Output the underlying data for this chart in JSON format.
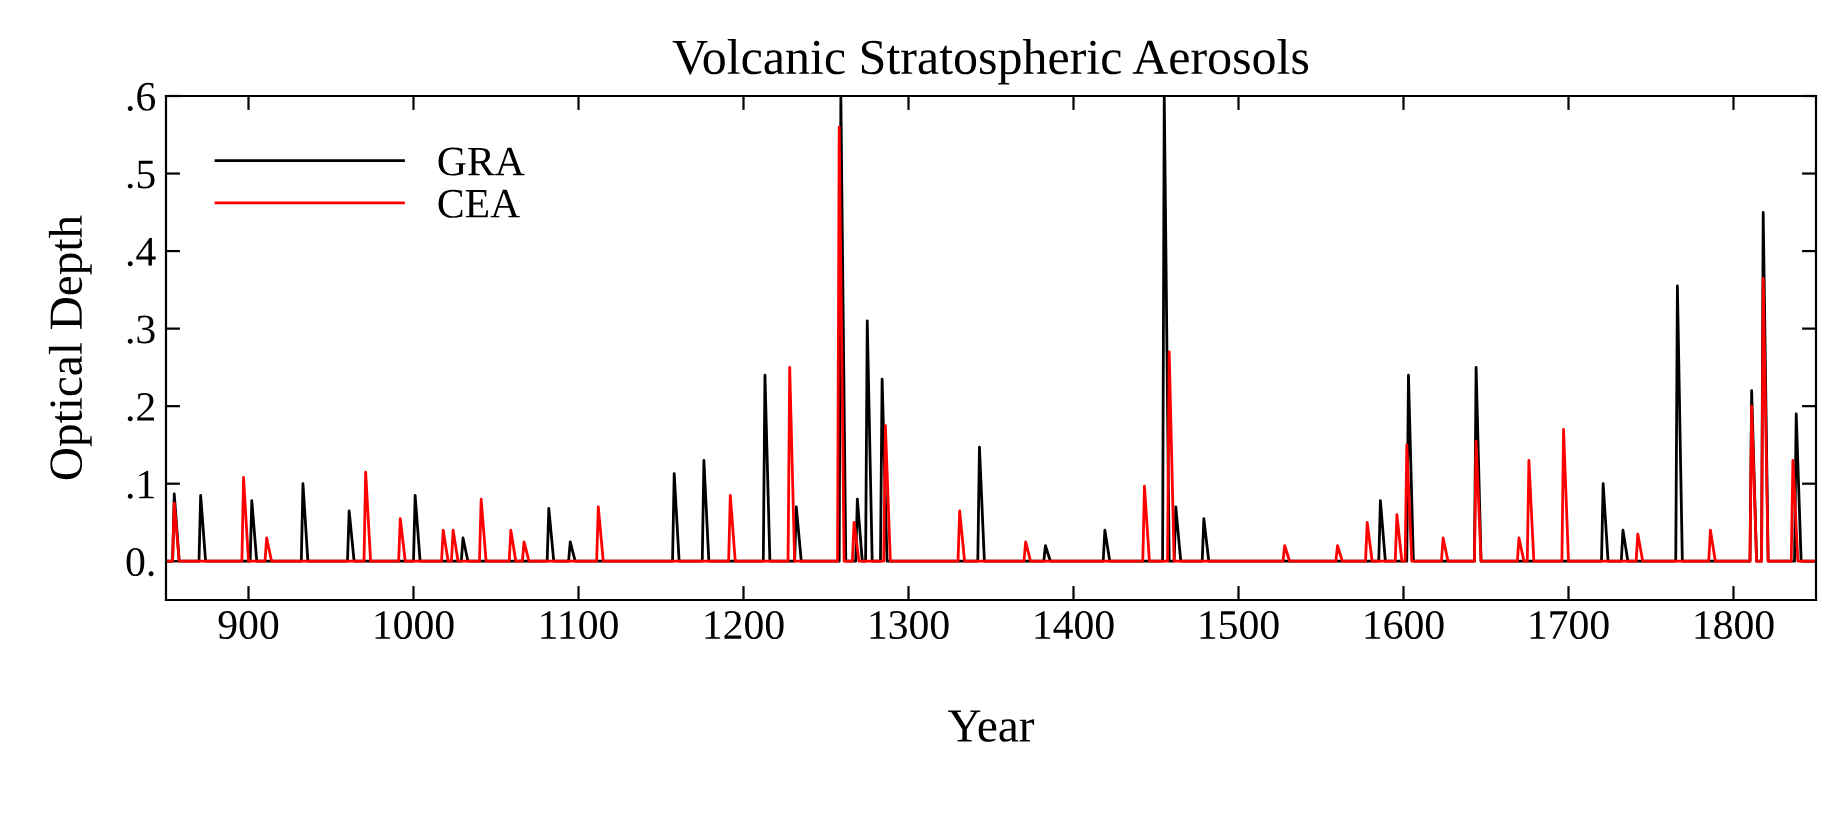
{
  "chart_data": {
    "type": "line",
    "title": "Volcanic Stratospheric Aerosols",
    "xlabel": "Year",
    "ylabel": "Optical Depth",
    "xlim": [
      850,
      1850
    ],
    "xticks": [
      900,
      1000,
      1100,
      1200,
      1300,
      1400,
      1500,
      1600,
      1700,
      1800
    ],
    "ylim": [
      -0.05,
      0.6
    ],
    "yticks": [
      {
        "value": 0,
        "label": "0."
      },
      {
        "value": 0.1,
        "label": ".1"
      },
      {
        "value": 0.2,
        "label": ".2"
      },
      {
        "value": 0.3,
        "label": ".3"
      },
      {
        "value": 0.4,
        "label": ".4"
      },
      {
        "value": 0.5,
        "label": ".5"
      },
      {
        "value": 0.6,
        "label": ".6"
      }
    ],
    "grid": false,
    "legend": "top left",
    "marker": "none",
    "line_style": "solid",
    "series": [
      {
        "name": "GRA",
        "color": "#000000",
        "x": [
          850,
          854,
          855,
          858,
          870,
          871,
          874,
          901,
          902,
          905,
          932,
          933,
          936,
          960,
          961,
          964,
          1000,
          1001,
          1004,
          1029,
          1030,
          1033,
          1081,
          1082,
          1085,
          1094,
          1095,
          1098,
          1157,
          1158,
          1161,
          1175,
          1176,
          1179,
          1212,
          1213,
          1216,
          1231,
          1232,
          1235,
          1258,
          1259,
          1262,
          1268,
          1269,
          1272,
          1274,
          1275,
          1278,
          1283,
          1284,
          1287,
          1342,
          1343,
          1346,
          1382,
          1383,
          1386,
          1418,
          1419,
          1422,
          1454,
          1455,
          1458,
          1461,
          1462,
          1465,
          1478,
          1479,
          1482,
          1585,
          1586,
          1589,
          1602,
          1603,
          1606,
          1643,
          1644,
          1647,
          1720,
          1721,
          1724,
          1732,
          1733,
          1736,
          1765,
          1766,
          1769,
          1810,
          1811,
          1814,
          1817,
          1818,
          1821,
          1837,
          1838,
          1841,
          1850
        ],
        "values": [
          0,
          0,
          0.087,
          0,
          0,
          0.085,
          0,
          0,
          0.078,
          0,
          0,
          0.1,
          0,
          0,
          0.065,
          0,
          0,
          0.085,
          0,
          0,
          0.03,
          0,
          0,
          0.068,
          0,
          0,
          0.025,
          0,
          0,
          0.113,
          0,
          0,
          0.13,
          0,
          0,
          0.24,
          0,
          0,
          0.07,
          0,
          0,
          0.6,
          0,
          0,
          0.08,
          0,
          0,
          0.31,
          0,
          0,
          0.235,
          0,
          0,
          0.147,
          0,
          0,
          0.02,
          0,
          0,
          0.04,
          0,
          0,
          0.6,
          0,
          0,
          0.07,
          0,
          0,
          0.055,
          0,
          0,
          0.078,
          0,
          0,
          0.24,
          0,
          0,
          0.25,
          0,
          0,
          0.1,
          0,
          0,
          0.04,
          0,
          0,
          0.355,
          0,
          0,
          0.22,
          0,
          0,
          0.45,
          0,
          0,
          0.19,
          0,
          0
        ]
      },
      {
        "name": "CEA",
        "color": "#ff0000",
        "x": [
          850,
          854,
          855,
          858,
          896,
          897,
          900,
          910,
          911,
          914,
          970,
          971,
          974,
          991,
          992,
          995,
          1017,
          1018,
          1021,
          1023,
          1024,
          1027,
          1040,
          1041,
          1044,
          1058,
          1059,
          1062,
          1066,
          1067,
          1070,
          1111,
          1112,
          1115,
          1191,
          1192,
          1195,
          1227,
          1228,
          1231,
          1257,
          1258,
          1261,
          1266,
          1267,
          1270,
          1285,
          1286,
          1289,
          1330,
          1331,
          1334,
          1370,
          1371,
          1374,
          1442,
          1443,
          1446,
          1457,
          1458,
          1461,
          1527,
          1528,
          1531,
          1559,
          1560,
          1563,
          1577,
          1578,
          1581,
          1595,
          1596,
          1599,
          1601,
          1602,
          1605,
          1623,
          1624,
          1627,
          1643,
          1644,
          1647,
          1669,
          1670,
          1673,
          1675,
          1676,
          1679,
          1696,
          1697,
          1700,
          1741,
          1742,
          1745,
          1785,
          1786,
          1789,
          1810,
          1811,
          1814,
          1817,
          1818,
          1821,
          1835,
          1836,
          1839,
          1850
        ],
        "values": [
          0,
          0,
          0.075,
          0,
          0,
          0.108,
          0,
          0,
          0.03,
          0,
          0,
          0.115,
          0,
          0,
          0.055,
          0,
          0,
          0.04,
          0,
          0,
          0.04,
          0,
          0,
          0.08,
          0,
          0,
          0.04,
          0,
          0,
          0.025,
          0,
          0,
          0.07,
          0,
          0,
          0.085,
          0,
          0,
          0.25,
          0,
          0,
          0.56,
          0,
          0,
          0.05,
          0,
          0,
          0.175,
          0,
          0,
          0.065,
          0,
          0,
          0.025,
          0,
          0,
          0.097,
          0,
          0,
          0.27,
          0,
          0,
          0.02,
          0,
          0,
          0.02,
          0,
          0,
          0.05,
          0,
          0,
          0.06,
          0,
          0,
          0.15,
          0,
          0,
          0.03,
          0,
          0,
          0.155,
          0,
          0,
          0.03,
          0,
          0,
          0.13,
          0,
          0,
          0.17,
          0,
          0,
          0.035,
          0,
          0,
          0.04,
          0,
          0,
          0.2,
          0,
          0,
          0.365,
          0,
          0,
          0.13,
          0,
          0
        ]
      }
    ]
  }
}
